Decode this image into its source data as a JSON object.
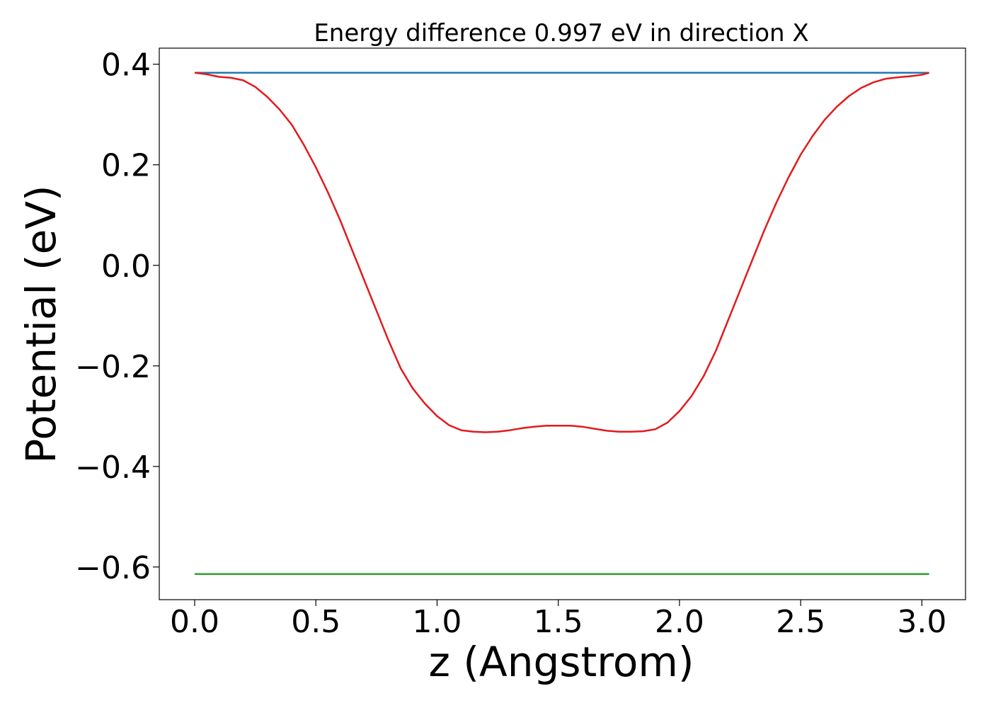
{
  "chart_data": {
    "type": "line",
    "title": "Energy difference 0.997 eV in direction X",
    "xlabel": "z (Angstrom)",
    "ylabel": "Potential (eV)",
    "xlim": [
      -0.146,
      3.18
    ],
    "ylim": [
      -0.665,
      0.432
    ],
    "xticks": [
      0.0,
      0.5,
      1.0,
      1.5,
      2.0,
      2.5,
      3.0
    ],
    "xtick_labels": [
      "0.0",
      "0.5",
      "1.0",
      "1.5",
      "2.0",
      "2.5",
      "3.0"
    ],
    "yticks": [
      0.4,
      0.2,
      0.0,
      -0.2,
      -0.4,
      -0.6
    ],
    "ytick_labels": [
      "0.4",
      "0.2",
      "0.0",
      "−0.2",
      "−0.4",
      "−0.6"
    ],
    "grid": false,
    "legend": "none",
    "series": [
      {
        "color": "#1f77b4",
        "x": [
          0.0,
          3.03
        ],
        "y": [
          0.383,
          0.383
        ]
      },
      {
        "color": "#2ca02c",
        "x": [
          0.0,
          3.03
        ],
        "y": [
          -0.614,
          -0.614
        ]
      },
      {
        "color": "#e31a1c",
        "x": [
          0.0,
          0.05,
          0.1,
          0.15,
          0.2,
          0.25,
          0.3,
          0.35,
          0.4,
          0.45,
          0.5,
          0.55,
          0.6,
          0.65,
          0.7,
          0.75,
          0.8,
          0.85,
          0.9,
          0.95,
          1.0,
          1.05,
          1.1,
          1.15,
          1.2,
          1.25,
          1.3,
          1.35,
          1.4,
          1.45,
          1.5,
          1.55,
          1.6,
          1.65,
          1.7,
          1.75,
          1.8,
          1.85,
          1.9,
          1.95,
          2.0,
          2.05,
          2.1,
          2.15,
          2.2,
          2.25,
          2.3,
          2.35,
          2.4,
          2.45,
          2.5,
          2.55,
          2.6,
          2.65,
          2.7,
          2.75,
          2.8,
          2.85,
          2.9,
          2.95,
          3.0,
          3.03
        ],
        "y": [
          0.383,
          0.38,
          0.375,
          0.373,
          0.368,
          0.355,
          0.335,
          0.31,
          0.28,
          0.24,
          0.195,
          0.145,
          0.09,
          0.03,
          -0.03,
          -0.09,
          -0.15,
          -0.205,
          -0.245,
          -0.275,
          -0.3,
          -0.318,
          -0.328,
          -0.331,
          -0.332,
          -0.331,
          -0.328,
          -0.324,
          -0.321,
          -0.319,
          -0.319,
          -0.319,
          -0.321,
          -0.325,
          -0.329,
          -0.331,
          -0.331,
          -0.33,
          -0.326,
          -0.313,
          -0.29,
          -0.26,
          -0.22,
          -0.17,
          -0.11,
          -0.05,
          0.01,
          0.07,
          0.125,
          0.175,
          0.22,
          0.258,
          0.29,
          0.316,
          0.337,
          0.353,
          0.364,
          0.371,
          0.374,
          0.376,
          0.379,
          0.383
        ]
      }
    ]
  }
}
